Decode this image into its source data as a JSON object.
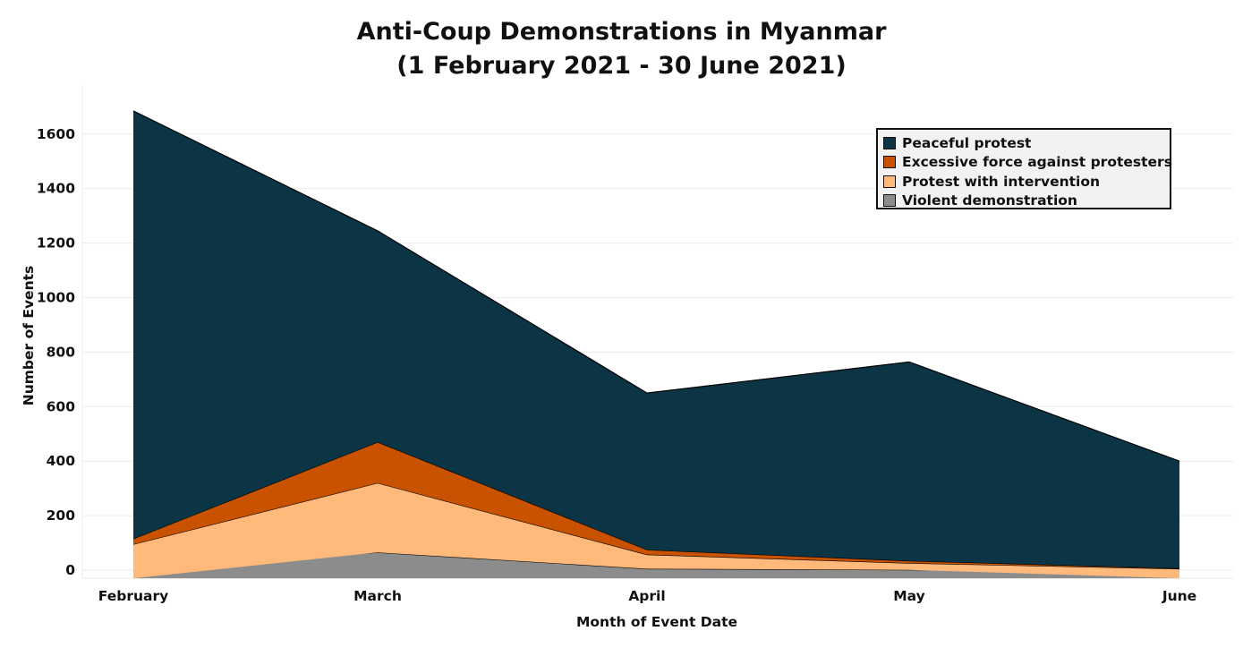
{
  "chart_data": {
    "type": "area",
    "stacked": true,
    "title": "Anti-Coup Demonstrations in Myanmar",
    "subtitle": "(1 February 2021 - 30 June 2021)",
    "xlabel": "Month of Event Date",
    "ylabel": "Number of Events",
    "categories": [
      "February",
      "March",
      "April",
      "May",
      "June"
    ],
    "ylim": [
      -30,
      1780
    ],
    "yticks": [
      0,
      200,
      400,
      600,
      800,
      1000,
      1200,
      1400,
      1600
    ],
    "grid": true,
    "legend_position": "top-right",
    "series": [
      {
        "name": "Violent demonstration",
        "color": "#8c8c8c",
        "values": [
          0,
          65,
          5,
          1,
          0
        ]
      },
      {
        "name": "Protest with intervention",
        "color": "#ffb97a",
        "values": [
          95,
          255,
          52,
          25,
          5
        ]
      },
      {
        "name": "Excessive force against protesters",
        "color": "#c85200",
        "values": [
          20,
          150,
          18,
          8,
          2
        ]
      },
      {
        "name": "Peaceful protest",
        "color": "#0b3545",
        "values": [
          1570,
          775,
          575,
          730,
          393
        ]
      }
    ],
    "legend_order": [
      "Peaceful protest",
      "Excessive force against protesters",
      "Protest with intervention",
      "Violent demonstration"
    ]
  }
}
